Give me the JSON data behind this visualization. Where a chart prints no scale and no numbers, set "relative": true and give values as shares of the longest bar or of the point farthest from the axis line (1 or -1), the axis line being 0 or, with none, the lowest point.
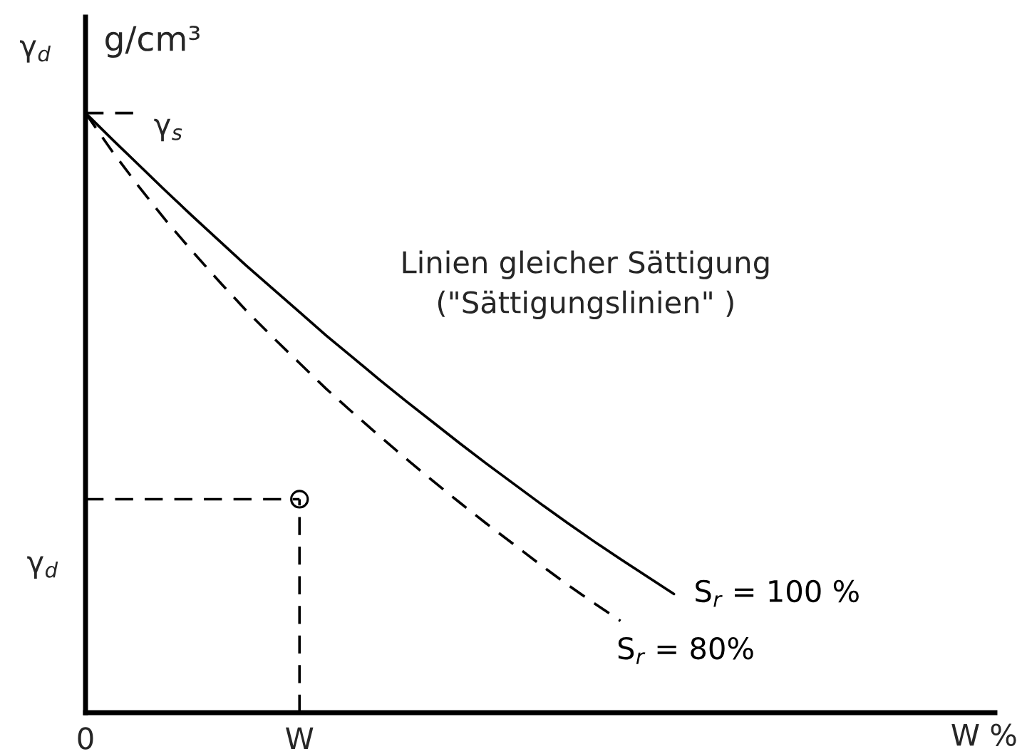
{
  "chart_data": {
    "type": "line",
    "relative": true,
    "xlabel": "W %",
    "ylabel": "γ$_{d}$",
    "tick_labels": "x",
    "grid": false,
    "legend": false,
    "categories": [
      "0",
      null,
      null,
      null,
      null,
      null,
      null,
      null,
      "W",
      null,
      null,
      null,
      null,
      null,
      null,
      null,
      null,
      null,
      null,
      null,
      null,
      null,
      null,
      null,
      null,
      null,
      null,
      null,
      null,
      null,
      null,
      null,
      null,
      null,
      null
    ],
    "annotations": [
      "g/cm³",
      "γ$_{s}$",
      "γ$_{d}$",
      "Linien gleicher Sättigung\n(\"Sättigungslinien\" )"
    ],
    "series": [
      {
        "name": "S$_{r}$ = 100 %",
        "color": "#000000",
        "line_style": "solid",
        "values": [
          1,
          0.956,
          0.913,
          0.87,
          0.828,
          0.787,
          0.746,
          0.707,
          0.668,
          0.629,
          0.592,
          0.555,
          0.519,
          0.484,
          0.449,
          0.415,
          0.382,
          0.349,
          0.317,
          0.286,
          0.256,
          0.227,
          0.198,
          null,
          null,
          null,
          null,
          null,
          null,
          null,
          null,
          null,
          null,
          null,
          null
        ]
      },
      {
        "name": "S$_{r}$ = 80%",
        "color": "#000000",
        "line_style": "dashed",
        "values": [
          1,
          0.936,
          0.877,
          0.821,
          0.769,
          0.719,
          0.671,
          0.626,
          0.583,
          0.54,
          0.5,
          0.461,
          0.423,
          0.386,
          0.35,
          0.315,
          0.281,
          0.247,
          0.214,
          0.183,
          0.153,
          null,
          null,
          null,
          null,
          null,
          null,
          null,
          null,
          null,
          null,
          null,
          null,
          null,
          null
        ]
      },
      {
        "color": "#000000",
        "line_style": "dashed",
        "values": [
          0.356,
          0.356,
          0.356,
          0.356,
          0.356,
          0.356,
          0.356,
          0.356,
          0.356,
          null,
          null,
          null,
          null,
          null,
          null,
          null,
          null,
          null,
          null,
          null,
          null,
          null,
          null,
          null,
          null,
          null,
          null,
          null,
          null,
          null,
          null,
          null,
          null,
          null,
          null
        ]
      },
      {
        "color": "#000000",
        "line_style": "dashed",
        "values": [
          1,
          1,
          1,
          null,
          null,
          null,
          null,
          null,
          null,
          null,
          null,
          null,
          null,
          null,
          null,
          null,
          null,
          null,
          null,
          null,
          null,
          null,
          null,
          null,
          null,
          null,
          null,
          null,
          null,
          null,
          null,
          null,
          null,
          null,
          null
        ]
      },
      {
        "type": "lollipop",
        "color": "#000000",
        "marker": "circle",
        "line_style": "dashed",
        "values": [
          null,
          null,
          null,
          null,
          null,
          null,
          null,
          null,
          0.356,
          null,
          null,
          null,
          null,
          null,
          null,
          null,
          null,
          null,
          null,
          null,
          null,
          null,
          null,
          null,
          null,
          null,
          null,
          null,
          null,
          null,
          null,
          null,
          null,
          null,
          null
        ]
      }
    ]
  }
}
